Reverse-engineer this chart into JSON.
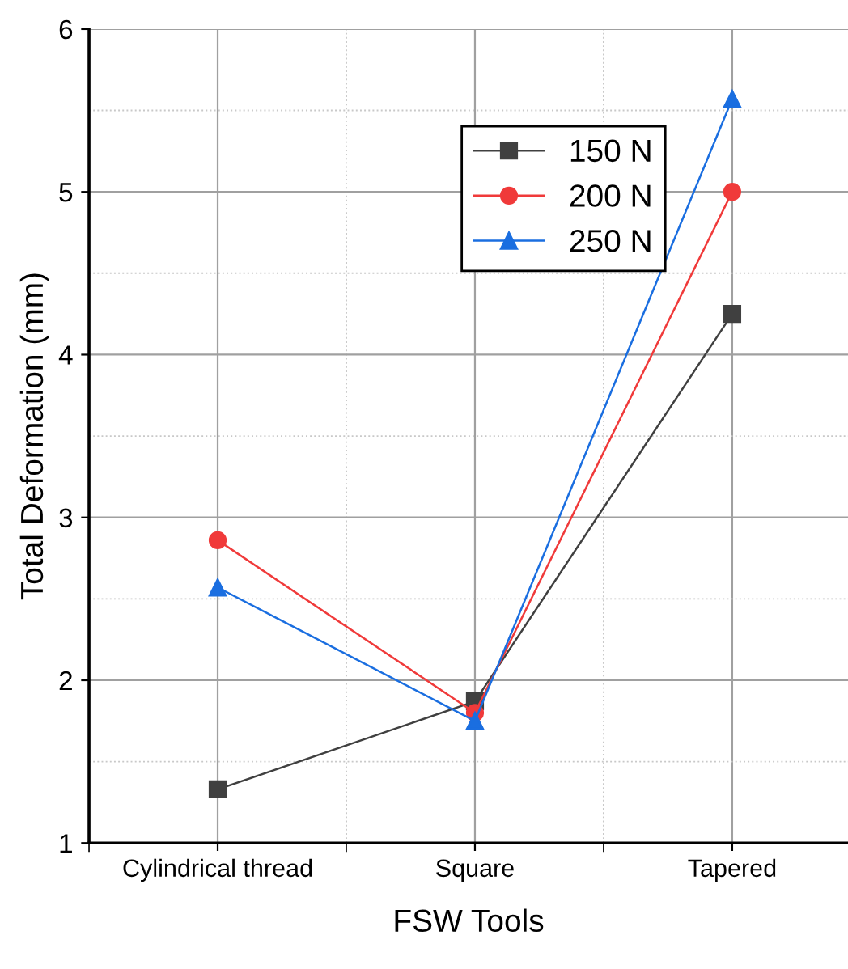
{
  "chart_data": {
    "type": "line",
    "xlabel": "FSW Tools",
    "ylabel": "Total Deformation (mm)",
    "categories": [
      "Cylindrical thread",
      "Square",
      "Tapered"
    ],
    "series": [
      {
        "name": "150 N",
        "color": "#404040",
        "marker": "square",
        "values": [
          1.33,
          1.87,
          4.25
        ]
      },
      {
        "name": "200 N",
        "color": "#f03a3a",
        "marker": "circle",
        "values": [
          2.86,
          1.8,
          5.0
        ]
      },
      {
        "name": "250 N",
        "color": "#1a6ee0",
        "marker": "triangle",
        "values": [
          2.57,
          1.75,
          5.57
        ]
      }
    ],
    "ylim": [
      1,
      6
    ],
    "yticks": [
      1,
      2,
      3,
      4,
      5,
      6
    ],
    "grid": true,
    "legend": "top right",
    "line_style": "solid"
  }
}
